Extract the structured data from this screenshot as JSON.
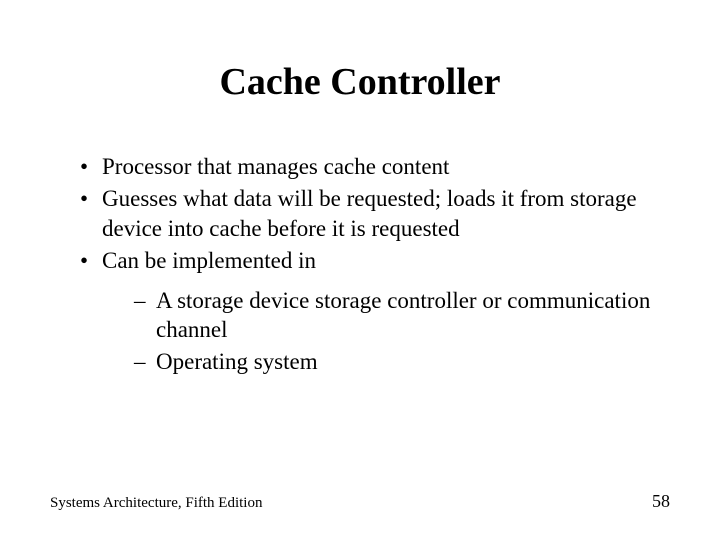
{
  "slide": {
    "title": "Cache Controller",
    "bullets": [
      "Processor that manages cache content",
      "Guesses what data will be requested; loads it from storage device into cache before it is requested",
      "Can be implemented in"
    ],
    "sub_bullets": [
      "A storage device storage controller or communication channel",
      "Operating system"
    ],
    "footer_text": "Systems Architecture, Fifth Edition",
    "page_number": "58"
  },
  "style": {
    "background_color": "#ffffff",
    "text_color": "#000000",
    "title_fontsize": 38,
    "body_fontsize": 23,
    "footer_fontsize": 15,
    "page_number_fontsize": 18,
    "font_family": "Times New Roman"
  }
}
